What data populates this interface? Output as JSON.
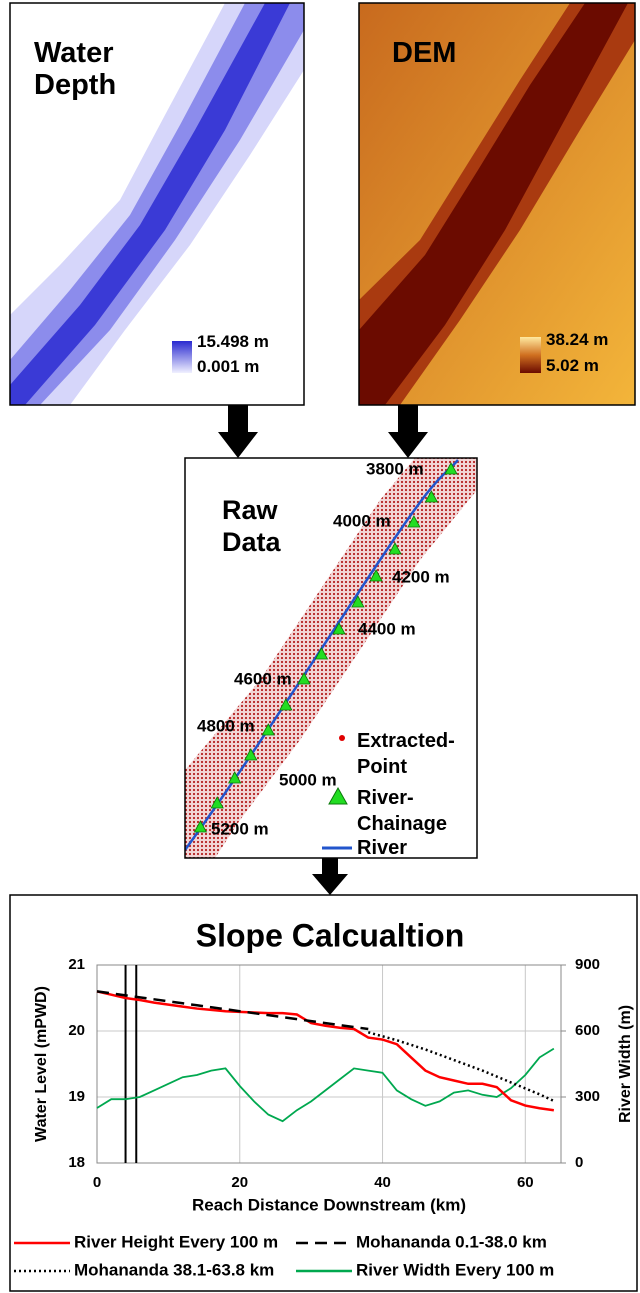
{
  "panels": {
    "water_depth": {
      "title": "Water Depth",
      "legend_max": "15.498 m",
      "legend_min": "0.001 m"
    },
    "dem": {
      "title": "DEM",
      "legend_max": "38.24 m",
      "legend_min": "5.02 m"
    },
    "raw_data": {
      "title": "Raw Data",
      "chainages": [
        "3800 m",
        "4000 m",
        "4200 m",
        "4400 m",
        "4600 m",
        "4800 m",
        "5000 m",
        "5200 m"
      ],
      "legend": [
        "Extracted-Point",
        "River-Chainage",
        "River"
      ]
    }
  },
  "chart_data": {
    "type": "line",
    "title": "Slope Calcualtion",
    "x_label": "Reach Distance Downstream (km)",
    "y_label": "Water Level (mPWD)",
    "y2_label": "River Width (m)",
    "x": [
      0,
      2,
      4,
      6,
      8,
      10,
      12,
      14,
      16,
      18,
      20,
      22,
      24,
      26,
      28,
      30,
      32,
      34,
      36,
      38,
      40,
      42,
      44,
      46,
      48,
      50,
      52,
      54,
      56,
      58,
      60,
      62,
      64
    ],
    "xlim": [
      0,
      65
    ],
    "xticks": [
      0,
      20,
      40,
      60
    ],
    "ylim": [
      18,
      21
    ],
    "yticks": [
      18,
      19,
      20,
      21
    ],
    "y2lim": [
      0,
      900
    ],
    "y2ticks": [
      0,
      300,
      600,
      900
    ],
    "grid": true,
    "vlines": [
      4,
      5.5
    ],
    "series": [
      {
        "name": "River Height Every 100 m",
        "color": "#ff0000",
        "style": "solid",
        "values": [
          20.6,
          20.55,
          20.5,
          20.47,
          20.43,
          20.4,
          20.37,
          20.34,
          20.32,
          20.3,
          20.29,
          20.28,
          20.27,
          20.27,
          20.25,
          20.12,
          20.08,
          20.05,
          20.03,
          19.9,
          19.87,
          19.8,
          19.6,
          19.4,
          19.3,
          19.25,
          19.2,
          19.2,
          19.15,
          18.95,
          18.87,
          18.83,
          18.8
        ]
      },
      {
        "name": "Mohananda 0.1-38.0 km",
        "color": "#000000",
        "style": "dashed",
        "values": [
          20.6,
          20.57,
          20.54,
          20.51,
          20.48,
          20.45,
          20.42,
          20.39,
          20.36,
          20.33,
          20.3,
          20.27,
          20.24,
          20.21,
          20.18,
          20.15,
          20.12,
          20.09,
          20.06,
          20.03,
          null,
          null,
          null,
          null,
          null,
          null,
          null,
          null,
          null,
          null,
          null,
          null,
          null
        ]
      },
      {
        "name": "Mohananda 38.1-63.8 km",
        "color": "#000000",
        "style": "dotted",
        "values": [
          null,
          null,
          null,
          null,
          null,
          null,
          null,
          null,
          null,
          null,
          null,
          null,
          null,
          null,
          null,
          null,
          null,
          null,
          null,
          19.98,
          19.92,
          19.86,
          19.79,
          19.72,
          19.64,
          19.56,
          19.48,
          19.4,
          19.31,
          19.22,
          19.13,
          19.04,
          18.94
        ]
      },
      {
        "name": "River Width Every 100 m",
        "color": "#00a84f",
        "style": "solid",
        "axis": "y2",
        "values": [
          250,
          290,
          290,
          300,
          330,
          360,
          390,
          400,
          420,
          430,
          350,
          280,
          220,
          190,
          240,
          280,
          330,
          380,
          430,
          420,
          410,
          330,
          290,
          260,
          280,
          320,
          330,
          310,
          300,
          340,
          400,
          480,
          520
        ]
      }
    ]
  }
}
